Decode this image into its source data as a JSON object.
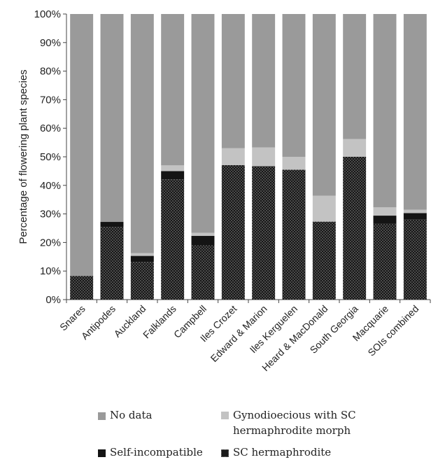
{
  "chart_data": {
    "type": "bar",
    "stacked": true,
    "normalized_percent": true,
    "ylabel": "Percentage of flowering plant species",
    "ylim": [
      0,
      100
    ],
    "yticks": [
      "0%",
      "10%",
      "20%",
      "30%",
      "40%",
      "50%",
      "60%",
      "70%",
      "80%",
      "90%",
      "100%"
    ],
    "categories": [
      "Snares",
      "Antipodes",
      "Auckland",
      "Falklands",
      "Campbell",
      "Iles Crozet",
      "Edward & Marion",
      "Iles Kerguelen",
      "Heard & MacDonald",
      "South Georgia",
      "Macquarie",
      "SOIs combined"
    ],
    "series": [
      {
        "name": "SC hermaphrodite",
        "color": "#1a1a1a",
        "pattern": "dots",
        "values": [
          8.3,
          25.4,
          13.2,
          42.1,
          19.0,
          47.1,
          46.7,
          45.5,
          27.3,
          50.0,
          26.5,
          28.0
        ]
      },
      {
        "name": "Self-incompatible",
        "color": "#141414",
        "values": [
          0,
          1.8,
          2.1,
          2.9,
          3.3,
          0,
          0,
          0,
          0,
          0,
          2.9,
          2.3
        ]
      },
      {
        "name": "Gynodioecious with SC hermaphrodite morph",
        "color": "#c3c3c3",
        "values": [
          0,
          0,
          1.0,
          2.0,
          1.1,
          5.9,
          6.6,
          4.5,
          9.1,
          6.2,
          2.9,
          1.2
        ]
      },
      {
        "name": "No data",
        "color": "#9a9a9a",
        "values": [
          91.7,
          72.8,
          83.7,
          53.0,
          76.6,
          47.0,
          46.7,
          50.0,
          63.6,
          43.8,
          67.7,
          68.5
        ]
      }
    ],
    "grid": false,
    "legend_position": "bottom"
  },
  "legend": {
    "no_data": "No data",
    "gyno_line1": "Gynodioecious with SC",
    "gyno_line2": "hermaphrodite morph",
    "self_incompatible": "Self-incompatible",
    "sc_hermaphrodite": "SC hermaphrodite"
  }
}
